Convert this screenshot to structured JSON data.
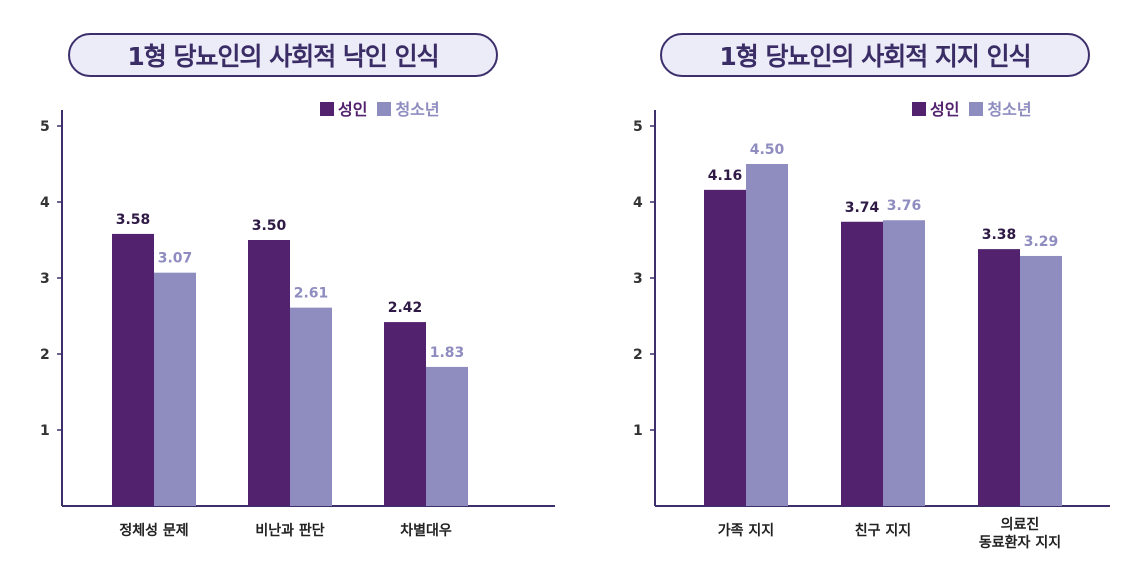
{
  "colors": {
    "adult": "#52226e",
    "teen": "#8f8dc0",
    "axis": "#3d2f6b"
  },
  "chart_data": [
    {
      "type": "bar",
      "title": "1형 당뇨인의 사회적 낙인 인식",
      "categories": [
        "정체성 문제",
        "비난과 판단",
        "차별대우"
      ],
      "series": [
        {
          "name": "성인",
          "values": [
            3.58,
            3.5,
            2.42
          ]
        },
        {
          "name": "청소년",
          "values": [
            3.07,
            2.61,
            1.83
          ]
        }
      ],
      "value_labels": [
        [
          "3.58",
          "3.50",
          "2.42"
        ],
        [
          "3.07",
          "2.61",
          "1.83"
        ]
      ],
      "yticks": [
        "1",
        "2",
        "3",
        "4",
        "5"
      ],
      "ylim": [
        0,
        5
      ],
      "legend": "top-right",
      "grid": false
    },
    {
      "type": "bar",
      "title": "1형 당뇨인의 사회적 지지 인식",
      "categories": [
        "가족 지지",
        "친구 지지",
        "의료진\n동료환자 지지"
      ],
      "series": [
        {
          "name": "성인",
          "values": [
            4.16,
            3.74,
            3.38
          ]
        },
        {
          "name": "청소년",
          "values": [
            4.5,
            3.76,
            3.29
          ]
        }
      ],
      "value_labels": [
        [
          "4.16",
          "3.74",
          "3.38"
        ],
        [
          "4.50",
          "3.76",
          "3.29"
        ]
      ],
      "yticks": [
        "1",
        "2",
        "3",
        "4",
        "5"
      ],
      "ylim": [
        0,
        5
      ],
      "legend": "top-right",
      "grid": false
    }
  ]
}
